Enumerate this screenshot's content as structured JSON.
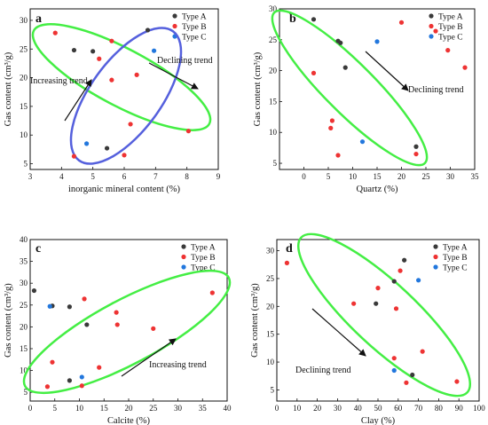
{
  "colors": {
    "Type A": "#3a3a3a",
    "Type B": "#ee3333",
    "Type C": "#2277dd",
    "ellipse_green": "#44ee44",
    "ellipse_blue": "#5560dd"
  },
  "chart_data": [
    {
      "panel": "a",
      "type": "scatter",
      "xlabel": "inorganic mineral content (%)",
      "ylabel": "Gas content (cm³/g)",
      "xlim": [
        3,
        9
      ],
      "ylim": [
        4,
        32
      ],
      "xticks": [
        3,
        4,
        5,
        6,
        7,
        8,
        9
      ],
      "yticks": [
        5,
        10,
        15,
        20,
        25,
        30
      ],
      "legend": "top-right",
      "grid": false,
      "series": [
        {
          "name": "Type A",
          "points": [
            [
              4.4,
              24.8
            ],
            [
              5.0,
              24.6
            ],
            [
              5.45,
              7.7
            ],
            [
              6.75,
              28.3
            ]
          ]
        },
        {
          "name": "Type B",
          "points": [
            [
              3.8,
              27.8
            ],
            [
              4.4,
              6.3
            ],
            [
              5.2,
              23.3
            ],
            [
              5.6,
              26.4
            ],
            [
              5.6,
              19.6
            ],
            [
              6.0,
              6.5
            ],
            [
              6.2,
              11.9
            ],
            [
              6.4,
              20.5
            ],
            [
              8.05,
              10.7
            ]
          ]
        },
        {
          "name": "Type C",
          "points": [
            [
              4.8,
              8.5
            ],
            [
              6.95,
              24.7
            ]
          ]
        }
      ],
      "annotations": [
        "Increasing trend",
        "Declining trend"
      ]
    },
    {
      "panel": "b",
      "type": "scatter",
      "xlabel": "Quartz (%)",
      "ylabel": "Gas content (cm³/g)",
      "xlim": [
        -5,
        35
      ],
      "ylim": [
        4,
        30
      ],
      "xticks": [
        0,
        5,
        10,
        15,
        20,
        25,
        30,
        35
      ],
      "yticks": [
        5,
        10,
        15,
        20,
        25,
        30
      ],
      "legend": "top-right",
      "grid": false,
      "series": [
        {
          "name": "Type A",
          "points": [
            [
              2,
              28.3
            ],
            [
              7,
              24.8
            ],
            [
              7.5,
              24.5
            ],
            [
              8.5,
              20.5
            ],
            [
              23,
              7.7
            ]
          ]
        },
        {
          "name": "Type B",
          "points": [
            [
              2,
              19.6
            ],
            [
              5.5,
              10.7
            ],
            [
              5.8,
              11.9
            ],
            [
              7,
              6.3
            ],
            [
              20,
              27.8
            ],
            [
              23,
              6.5
            ],
            [
              27,
              26.4
            ],
            [
              29.5,
              23.3
            ],
            [
              33,
              20.5
            ]
          ]
        },
        {
          "name": "Type C",
          "points": [
            [
              12,
              8.5
            ],
            [
              15,
              24.7
            ]
          ]
        }
      ],
      "annotations": [
        "Declining trend"
      ]
    },
    {
      "panel": "c",
      "type": "scatter",
      "xlabel": "Calcite (%)",
      "ylabel": "Gas content (cm³/g)",
      "xlim": [
        0,
        40
      ],
      "ylim": [
        3,
        40
      ],
      "xticks": [
        0,
        5,
        10,
        15,
        20,
        25,
        30,
        35,
        40
      ],
      "yticks": [
        5,
        10,
        15,
        20,
        25,
        30,
        35,
        40
      ],
      "legend": "top-right",
      "grid": false,
      "series": [
        {
          "name": "Type A",
          "points": [
            [
              0.8,
              28.3
            ],
            [
              4.5,
              24.8
            ],
            [
              8,
              24.6
            ],
            [
              11.5,
              20.5
            ],
            [
              8,
              7.7
            ]
          ]
        },
        {
          "name": "Type B",
          "points": [
            [
              3.5,
              6.3
            ],
            [
              4.5,
              11.9
            ],
            [
              10.5,
              6.5
            ],
            [
              11,
              26.4
            ],
            [
              14,
              10.7
            ],
            [
              17.5,
              23.3
            ],
            [
              17.7,
              20.5
            ],
            [
              25,
              19.6
            ],
            [
              37,
              27.8
            ]
          ]
        },
        {
          "name": "Type C",
          "points": [
            [
              4,
              24.7
            ],
            [
              10.5,
              8.5
            ]
          ]
        }
      ],
      "annotations": [
        "Increasing trend"
      ]
    },
    {
      "panel": "d",
      "type": "scatter",
      "xlabel": "Clay (%)",
      "ylabel": "Gas content (cm³/g)",
      "xlim": [
        0,
        100
      ],
      "ylim": [
        3,
        32
      ],
      "xticks": [
        0,
        10,
        20,
        30,
        40,
        50,
        60,
        70,
        80,
        90,
        100
      ],
      "yticks": [
        5,
        10,
        15,
        20,
        25,
        30
      ],
      "legend": "top-right",
      "grid": false,
      "series": [
        {
          "name": "Type A",
          "points": [
            [
              49,
              20.5
            ],
            [
              58,
              24.5
            ],
            [
              63,
              28.3
            ],
            [
              67,
              7.7
            ]
          ]
        },
        {
          "name": "Type B",
          "points": [
            [
              5,
              27.8
            ],
            [
              38,
              20.5
            ],
            [
              50,
              23.3
            ],
            [
              58,
              10.7
            ],
            [
              59,
              19.6
            ],
            [
              61,
              26.4
            ],
            [
              64,
              6.3
            ],
            [
              72,
              11.9
            ],
            [
              89,
              6.5
            ]
          ]
        },
        {
          "name": "Type C",
          "points": [
            [
              58,
              8.5
            ],
            [
              70,
              24.7
            ]
          ]
        }
      ],
      "annotations": [
        "Declining trend"
      ]
    }
  ]
}
